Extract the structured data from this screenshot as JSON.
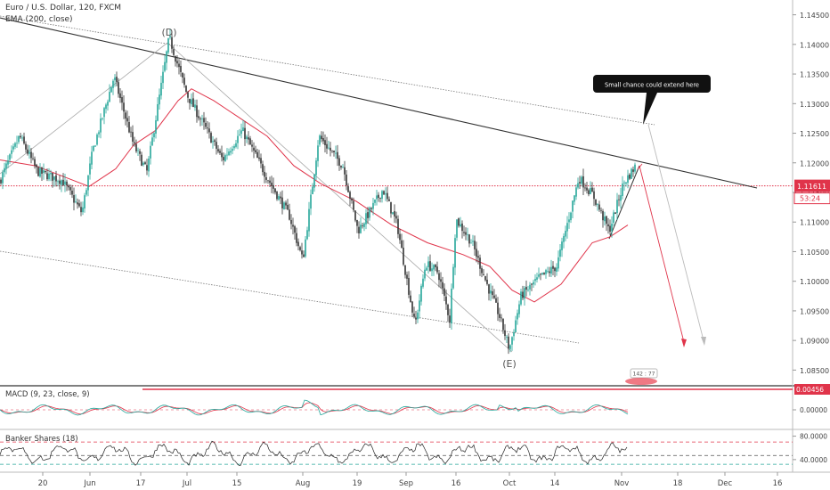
{
  "header": {
    "symbol_line": "Euro / U.S. Dollar, 120, FXCM",
    "ema_line": "EMA (200, close)"
  },
  "colors": {
    "up_candle": "#26a69a",
    "down_candle": "#333333",
    "ema": "#e0344a",
    "trendline": "#333333",
    "price_line": "#e0344a",
    "macd_line": "#26a69a",
    "macd_signal": "#e0344a",
    "banker_line": "#222222",
    "banker_level_top": "#e0344a",
    "banker_level_bottom": "#26a69a"
  },
  "price_panel": {
    "y_ticks": [
      "1.14500",
      "1.14000",
      "1.13500",
      "1.13000",
      "1.12500",
      "1.12000",
      "1.11500",
      "1.11000",
      "1.10500",
      "1.10000",
      "1.09500",
      "1.09000",
      "1.08500"
    ],
    "last_price": "1.11611",
    "countdown": "53:24",
    "wave_labels": {
      "d": "(D)",
      "e": "(E)"
    },
    "callout": "Small chance could extend here",
    "small_badge": "142 : 77"
  },
  "macd_panel": {
    "title": "MACD (9, 23, close, 9)",
    "y_ticks": [
      "0.00456",
      "0.00000"
    ]
  },
  "banker_panel": {
    "title": "Banker Shares (18)",
    "y_ticks": [
      "80.0000",
      "40.0000"
    ]
  },
  "time_axis": {
    "labels": [
      "20",
      "Jun",
      "17",
      "Jul",
      "15",
      "Aug",
      "19",
      "Sep",
      "16",
      "Oct",
      "14",
      "Nov",
      "18",
      "Dec",
      "16"
    ]
  },
  "chart_data": [
    {
      "type": "line",
      "panel": "price",
      "description": "EUR/USD 2-hour candlestick approximation (close values)",
      "x": [
        "May 20",
        "Jun 3",
        "Jun 17",
        "Jul 1",
        "Jul 15",
        "Aug 1",
        "Aug 19",
        "Sep 2",
        "Sep 16",
        "Oct 1",
        "Oct 14",
        "Nov 1"
      ],
      "series": [
        {
          "name": "Close",
          "values": [
            1.117,
            1.1245,
            1.1405,
            1.128,
            1.1235,
            1.1175,
            1.1095,
            1.0925,
            1.1045,
            1.0935,
            1.1165,
            1.1185
          ]
        },
        {
          "name": "EMA (200, close)",
          "values": [
            1.1205,
            1.1195,
            1.1295,
            1.1325,
            1.1245,
            1.1165,
            1.1105,
            1.1045,
            1.1005,
            1.0955,
            1.1005,
            1.1075
          ]
        }
      ],
      "ylim": [
        1.0825,
        1.1475
      ]
    },
    {
      "type": "line",
      "panel": "macd",
      "title": "MACD (9, 23, close, 9)",
      "ylim": [
        -0.004,
        0.004
      ]
    },
    {
      "type": "line",
      "panel": "banker",
      "title": "Banker Shares (18)",
      "ylim": [
        20,
        90
      ],
      "levels": [
        70,
        47,
        32
      ]
    }
  ]
}
